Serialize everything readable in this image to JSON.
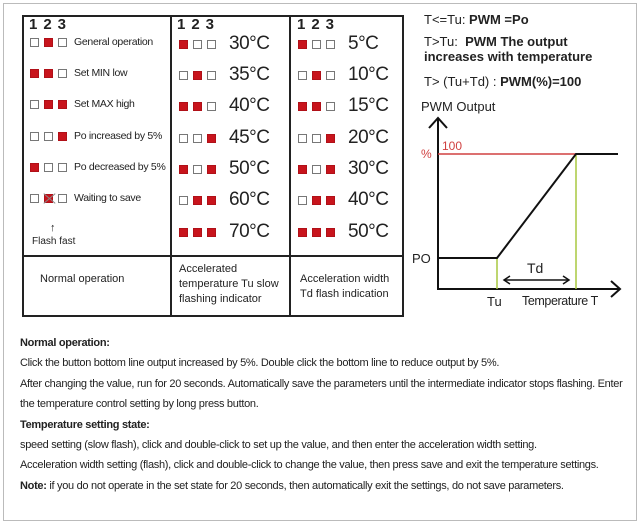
{
  "table": {
    "col_header": "123",
    "normal": {
      "rows": [
        {
          "leds": [
            0,
            1,
            0
          ],
          "label": "General operation"
        },
        {
          "leds": [
            1,
            1,
            0
          ],
          "label": "Set MIN low"
        },
        {
          "leds": [
            0,
            1,
            1
          ],
          "label": "Set MAX high"
        },
        {
          "leds": [
            0,
            0,
            1
          ],
          "label": "Po increased by 5%"
        },
        {
          "leds": [
            1,
            0,
            0
          ],
          "label": "Po decreased by 5%"
        },
        {
          "leds": [
            0,
            1,
            0
          ],
          "label": "Waiting to save"
        }
      ],
      "flash_note": "Flash fast",
      "caption": "Normal operation"
    },
    "tu": {
      "rows": [
        {
          "leds": [
            1,
            0,
            0
          ],
          "label": "30°C"
        },
        {
          "leds": [
            0,
            1,
            0
          ],
          "label": "35°C"
        },
        {
          "leds": [
            1,
            1,
            0
          ],
          "label": "40°C"
        },
        {
          "leds": [
            0,
            0,
            1
          ],
          "label": "45°C"
        },
        {
          "leds": [
            1,
            0,
            1
          ],
          "label": "50°C"
        },
        {
          "leds": [
            0,
            1,
            1
          ],
          "label": "60°C"
        },
        {
          "leds": [
            1,
            1,
            1
          ],
          "label": "70°C"
        }
      ],
      "caption": "Accelerated temperature Tu slow flashing indicator"
    },
    "td": {
      "rows": [
        {
          "leds": [
            1,
            0,
            0
          ],
          "label": "5°C"
        },
        {
          "leds": [
            0,
            1,
            0
          ],
          "label": "10°C"
        },
        {
          "leds": [
            1,
            1,
            0
          ],
          "label": "15°C"
        },
        {
          "leds": [
            0,
            0,
            1
          ],
          "label": "20°C"
        },
        {
          "leds": [
            1,
            0,
            1
          ],
          "label": "30°C"
        },
        {
          "leds": [
            0,
            1,
            1
          ],
          "label": "40°C"
        },
        {
          "leds": [
            1,
            1,
            1
          ],
          "label": "50°C"
        }
      ],
      "caption": "Acceleration width Td flash indication"
    }
  },
  "formulas": {
    "f1_cond": "T<=Tu: ",
    "f1_val": "PWM =Po",
    "f2_cond": "T>Tu:  ",
    "f2_val": "PWM The output",
    "f2_line2": "increases with temperature",
    "f3_cond": "T> (Tu+Td) : ",
    "f3_val": "PWM(%)=100"
  },
  "graph": {
    "y_title": "PWM Output",
    "percent": "%",
    "hundred": "100",
    "po": "PO",
    "tu": "Tu",
    "td": "Td",
    "x_title": "Temperature T",
    "colors": {
      "line": "#111111",
      "max": "#d04040",
      "guide": "#a8c840",
      "led": "#c8141c"
    }
  },
  "notes": {
    "h1": "Normal operation:",
    "p1": "Click the button bottom line output increased by 5%. Double click the bottom line to reduce output by 5%.",
    "p2": "After changing the value, run for 20 seconds. Automatically save the parameters until the intermediate indicator stops flashing. Enter the temperature control setting by long press button.",
    "h2": "Temperature setting state:",
    "p3": "speed setting (slow flash), click and double-click to set up the value, and then enter the acceleration width setting.",
    "p4": "Acceleration width setting (flash), click and double-click to change the value, then press save and exit the temperature settings.",
    "note_label": "Note:",
    "note": " if you do not operate in the set state for 20 seconds, then automatically exit the settings, do not save parameters."
  }
}
